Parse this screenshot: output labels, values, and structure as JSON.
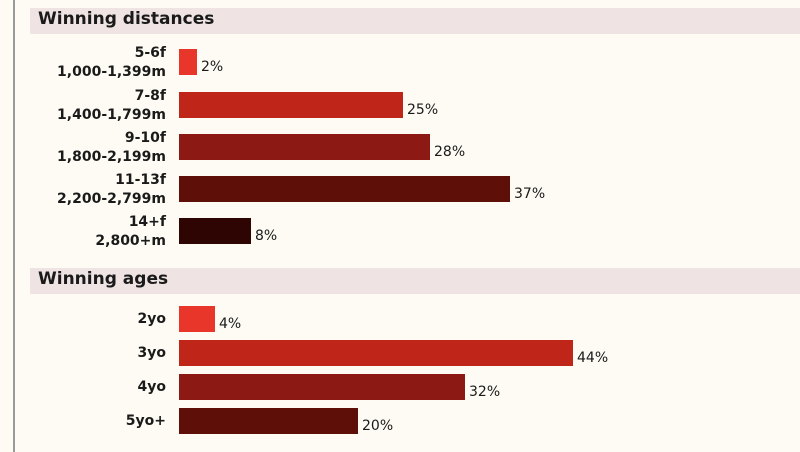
{
  "chart_data": [
    {
      "type": "bar",
      "orientation": "horizontal",
      "title": "Winning distances",
      "categories": [
        [
          "5-6f",
          "1,000-1,399m"
        ],
        [
          "7-8f",
          "1,400-1,799m"
        ],
        [
          "9-10f",
          "1,800-2,199m"
        ],
        [
          "11-13f",
          "2,200-2,799m"
        ],
        [
          "14+f",
          "2,800+m"
        ]
      ],
      "values": [
        2,
        25,
        28,
        37,
        8
      ],
      "value_labels": [
        "2%",
        "25%",
        "28%",
        "37%",
        "8%"
      ],
      "colors": [
        "#e8372a",
        "#bf2519",
        "#8c1913",
        "#5e0f08",
        "#2e0503"
      ],
      "unit": "%"
    },
    {
      "type": "bar",
      "orientation": "horizontal",
      "title": "Winning ages",
      "categories": [
        [
          "2yo"
        ],
        [
          "3yo"
        ],
        [
          "4yo"
        ],
        [
          "5yo+"
        ]
      ],
      "values": [
        4,
        44,
        32,
        20
      ],
      "value_labels": [
        "4%",
        "44%",
        "32%",
        "20%"
      ],
      "colors": [
        "#e8372a",
        "#bf2519",
        "#8c1913",
        "#5e0f08"
      ],
      "unit": "%"
    }
  ]
}
